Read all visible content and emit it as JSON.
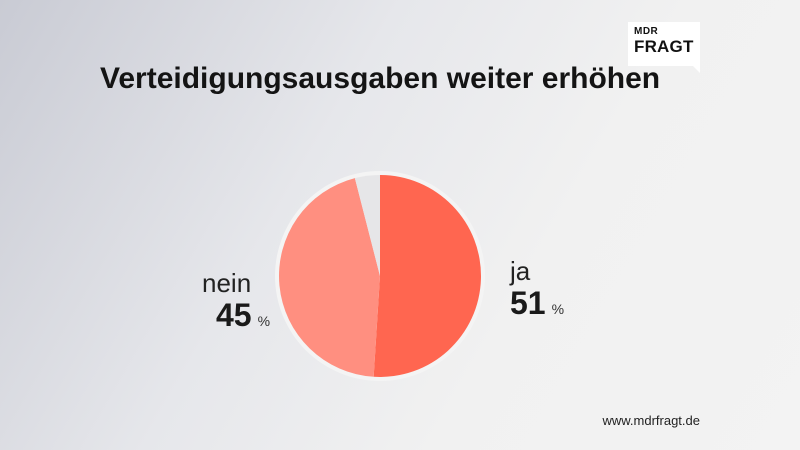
{
  "logo": {
    "top": "MDR",
    "bottom": "FRAGT"
  },
  "title": "Verteidigungsausgaben weiter erhöhen",
  "chart_data": {
    "type": "pie",
    "title": "Verteidigungsausgaben weiter erhöhen",
    "unit": "%",
    "slices": [
      {
        "label": "ja",
        "value": 51,
        "color": "#ff6650"
      },
      {
        "label": "nein",
        "value": 45,
        "color": "#ff8f80"
      },
      {
        "label": "",
        "value": 4,
        "color": "#e6e6e8"
      }
    ]
  },
  "labels": {
    "ja": {
      "name": "ja",
      "value": "51",
      "unit": "%"
    },
    "nein": {
      "name": "nein",
      "value": "45",
      "unit": "%"
    }
  },
  "footer": "www.mdrfragt.de"
}
